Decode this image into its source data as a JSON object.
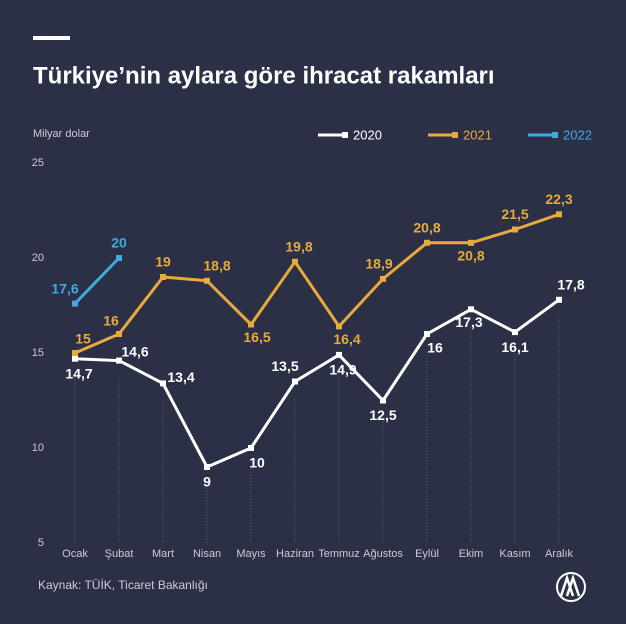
{
  "chart_data": {
    "type": "line",
    "title": "Türkiye’nin aylara göre ihracat rakamları",
    "y_label": "Milyar dolar",
    "source": "Kaynak: TÜİK, Ticaret Bakanlığı",
    "categories": [
      "Ocak",
      "Şubat",
      "Mart",
      "Nisan",
      "Mayıs",
      "Haziran",
      "Temmuz",
      "Ağustos",
      "Eylül",
      "Ekim",
      "Kasım",
      "Aralık"
    ],
    "series": [
      {
        "name": "2020",
        "color": "#ffffff",
        "values": [
          14.7,
          14.6,
          13.4,
          9,
          10,
          13.5,
          14.9,
          12.5,
          16,
          17.3,
          16.1,
          17.8
        ],
        "value_labels": [
          "14,7",
          "14,6",
          "13,4",
          "9",
          "10",
          "13,5",
          "14,9",
          "12,5",
          "16",
          "17,3",
          "16,1",
          "17,8"
        ]
      },
      {
        "name": "2021",
        "color": "#e8a93d",
        "values": [
          15,
          16,
          19,
          18.8,
          16.5,
          19.8,
          16.4,
          18.9,
          20.8,
          20.8,
          21.5,
          22.3
        ],
        "value_labels": [
          "15",
          "16",
          "19",
          "18,8",
          "16,5",
          "19,8",
          "16,4",
          "18,9",
          "20,8",
          "20,8",
          "21,5",
          "22,3"
        ]
      },
      {
        "name": "2022",
        "color": "#3fa9e0",
        "values": [
          17.6,
          20,
          null,
          null,
          null,
          null,
          null,
          null,
          null,
          null,
          null,
          null
        ],
        "value_labels": [
          "17,6",
          "20",
          null,
          null,
          null,
          null,
          null,
          null,
          null,
          null,
          null,
          null
        ]
      }
    ],
    "ylim": [
      5,
      25
    ],
    "yticks": [
      5,
      10,
      15,
      20,
      25
    ]
  }
}
